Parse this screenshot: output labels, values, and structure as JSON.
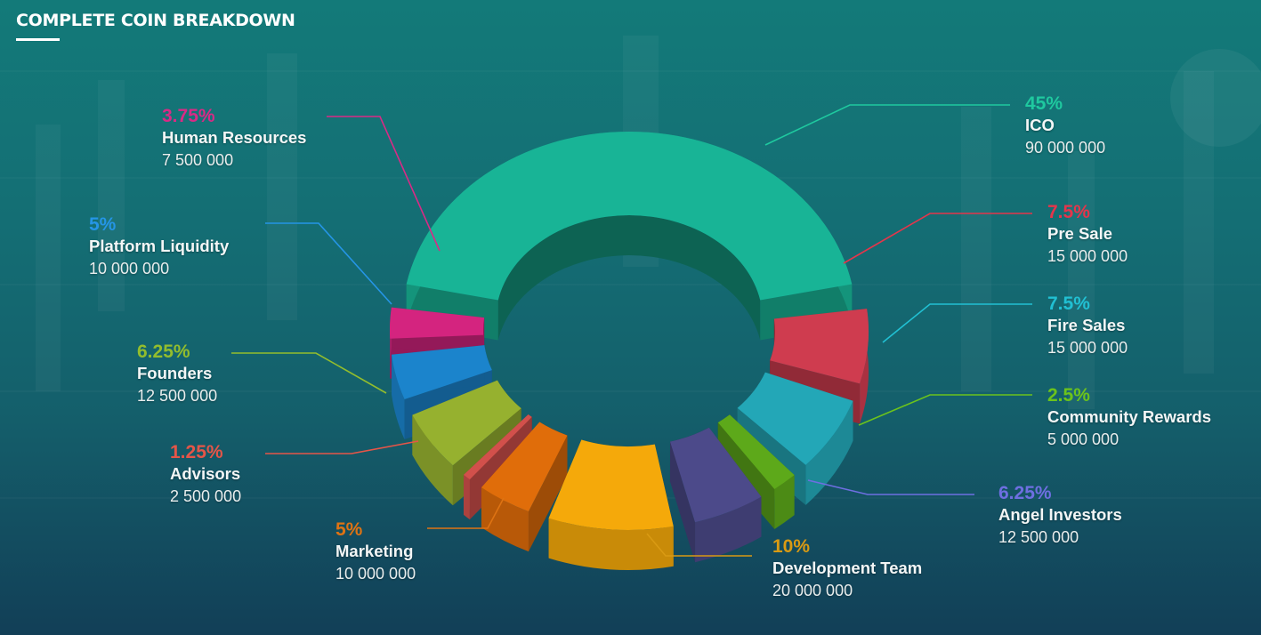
{
  "header": {
    "title": "COMPLETE COIN BREAKDOWN"
  },
  "chart_data": {
    "type": "pie",
    "title": "COMPLETE COIN BREAKDOWN",
    "slices": [
      {
        "name": "ICO",
        "percent": 45,
        "percent_label": "45%",
        "amount": "90 000 000",
        "color": "#18b496"
      },
      {
        "name": "Pre Sale",
        "percent": 7.5,
        "percent_label": "7.5%",
        "amount": "15 000 000",
        "color": "#cf3c4f"
      },
      {
        "name": "Fire Sales",
        "percent": 7.5,
        "percent_label": "7.5%",
        "amount": "15 000 000",
        "color": "#23a7b7"
      },
      {
        "name": "Community Rewards",
        "percent": 2.5,
        "percent_label": "2.5%",
        "amount": "5 000 000",
        "color": "#5da91a"
      },
      {
        "name": "Angel Investors",
        "percent": 6.25,
        "percent_label": "6.25%",
        "amount": "12 500 000",
        "color": "#4c4a8a"
      },
      {
        "name": "Development Team",
        "percent": 10,
        "percent_label": "10%",
        "amount": "20 000 000",
        "color": "#f5a90a"
      },
      {
        "name": "Marketing",
        "percent": 5,
        "percent_label": "5%",
        "amount": "10 000 000",
        "color": "#e06d0a"
      },
      {
        "name": "Advisors",
        "percent": 1.25,
        "percent_label": "1.25%",
        "amount": "2 500 000",
        "color": "#d2504b"
      },
      {
        "name": "Founders",
        "percent": 6.25,
        "percent_label": "6.25%",
        "amount": "12 500 000",
        "color": "#96b12f"
      },
      {
        "name": "Platform Liquidity",
        "percent": 5,
        "percent_label": "5%",
        "amount": "10 000 000",
        "color": "#1b84cc"
      },
      {
        "name": "Human Resources",
        "percent": 3.75,
        "percent_label": "3.75%",
        "amount": "7 500 000",
        "color": "#d4247f"
      }
    ],
    "label_colors": {
      "ICO": "#1fc99f",
      "Pre Sale": "#e5354b",
      "Fire Sales": "#21c0d3",
      "Community Rewards": "#6cc31c",
      "Angel Investors": "#6e6fe1",
      "Development Team": "#d99a13",
      "Marketing": "#de7313",
      "Advisors": "#e55548",
      "Founders": "#93bd2d",
      "Platform Liquidity": "#2595e6",
      "Human Resources": "#d92a86"
    }
  }
}
